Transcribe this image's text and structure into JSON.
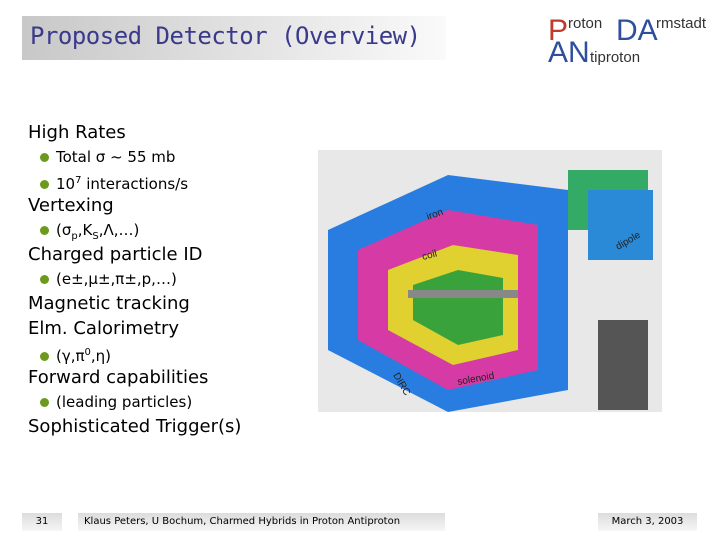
{
  "header": {
    "title": "Proposed Detector (Overview)",
    "logo": {
      "p": "P",
      "roton": "roton",
      "da": "DA",
      "rmstadt": "rmstadt",
      "an": "AN",
      "tiproton": "tiproton"
    }
  },
  "sections": [
    {
      "heading": "High Rates",
      "items": [
        [
          {
            "text": "Total σ ~ 55 mb"
          }
        ],
        [
          {
            "text": "10"
          },
          {
            "sup": "7"
          },
          {
            "text": " interactions/s"
          }
        ]
      ]
    },
    {
      "heading": "Vertexing",
      "items": [
        [
          {
            "text": "(σ"
          },
          {
            "sub": "p"
          },
          {
            "text": ",K"
          },
          {
            "sub": "S"
          },
          {
            "text": ",Λ,…)"
          }
        ]
      ]
    },
    {
      "heading": "Charged particle ID",
      "items": [
        [
          {
            "text": "(e±,μ±,π±,p,…)"
          }
        ]
      ]
    },
    {
      "heading": "Magnetic tracking",
      "items": []
    },
    {
      "heading": "Elm. Calorimetry",
      "items": [
        [
          {
            "text": "(γ,π"
          },
          {
            "sup": "0"
          },
          {
            "text": ",η)"
          }
        ]
      ]
    },
    {
      "heading": "Forward capabilities",
      "items": [
        [
          {
            "text": "(leading particles)"
          }
        ]
      ]
    },
    {
      "heading": "Sophisticated Trigger(s)",
      "items": []
    }
  ],
  "figure": {
    "labels": [
      "iron",
      "coil",
      "solenoid",
      "DIRC",
      "dipole"
    ]
  },
  "footer": {
    "page": "31",
    "author": "Klaus Peters, U Bochum, Charmed Hybrids in Proton Antiproton",
    "date": "March 3, 2003"
  }
}
